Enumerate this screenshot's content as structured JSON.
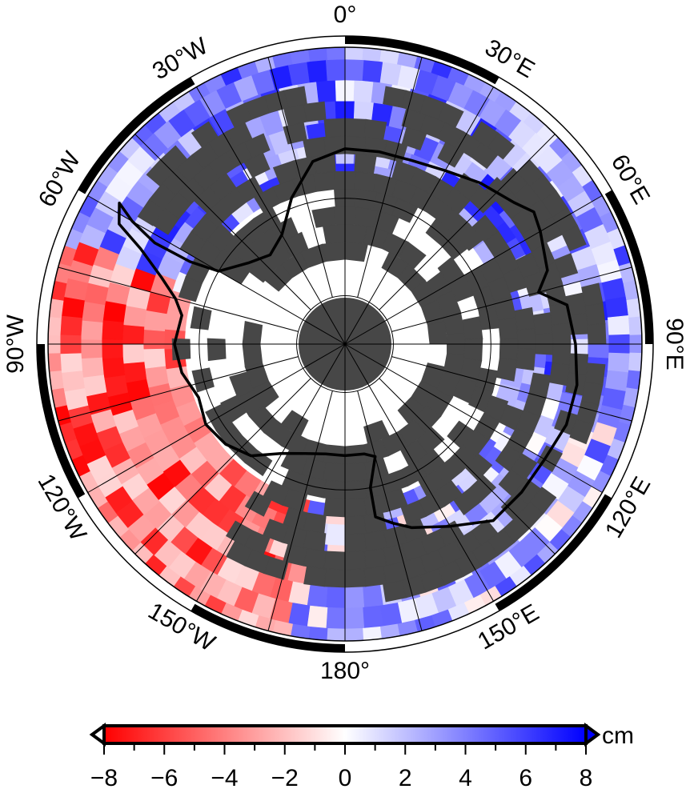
{
  "map": {
    "projection": "south-polar-stereographic",
    "land_color": "#474747",
    "coast_color": "#000000",
    "graticule_color": "#000000",
    "longitude_labels": [
      {
        "lon": 0,
        "text": "0°"
      },
      {
        "lon": 30,
        "text": "30°E"
      },
      {
        "lon": 60,
        "text": "60°E"
      },
      {
        "lon": 90,
        "text": "90°E"
      },
      {
        "lon": 120,
        "text": "120°E"
      },
      {
        "lon": 150,
        "text": "150°E"
      },
      {
        "lon": 180,
        "text": "180°"
      },
      {
        "lon": -150,
        "text": "150°W"
      },
      {
        "lon": -120,
        "text": "120°W"
      },
      {
        "lon": -90,
        "text": "90°W"
      },
      {
        "lon": -60,
        "text": "60°W"
      },
      {
        "lon": -30,
        "text": "30°W"
      }
    ],
    "latitude_circles": [
      -60,
      -75,
      -85
    ]
  },
  "colorbar": {
    "palette": [
      "#ff0000",
      "#ffffff",
      "#0000ff"
    ],
    "min": -8,
    "max": 8,
    "tick_labels": [
      "−8",
      "−6",
      "−4",
      "−2",
      "0",
      "2",
      "4",
      "6",
      "8"
    ],
    "tick_values": [
      -8,
      -6,
      -4,
      -2,
      0,
      2,
      4,
      6,
      8
    ],
    "minor_step": 1,
    "unit": "cm",
    "extends": "both"
  }
}
